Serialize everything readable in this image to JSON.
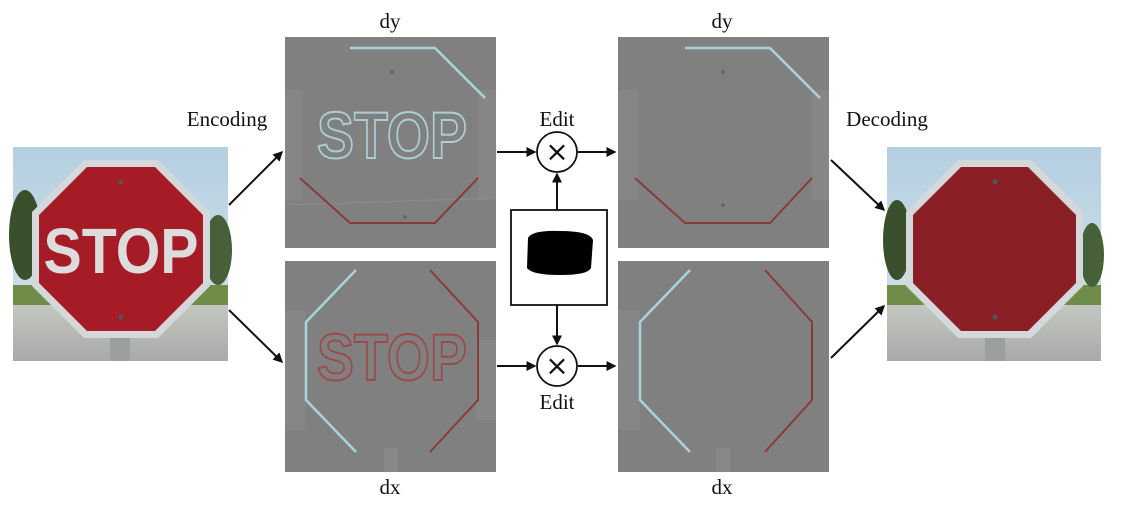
{
  "labels": {
    "encoding": "Encoding",
    "decoding": "Decoding",
    "edit_top": "Edit",
    "edit_bottom": "Edit",
    "dy_left": "dy",
    "dy_right": "dy",
    "dx_left": "dx",
    "dx_right": "dx"
  },
  "sign_text": {
    "input": "STOP",
    "dy": "STOP",
    "dx": "STOP"
  },
  "operators": {
    "multiply_symbol": "×"
  },
  "colors": {
    "sign_red": "#a51c27",
    "decoded_red": "#8a1f26",
    "gradient_gray": "#808080",
    "sky": "#a9c7dc",
    "arrow": "#111111"
  }
}
